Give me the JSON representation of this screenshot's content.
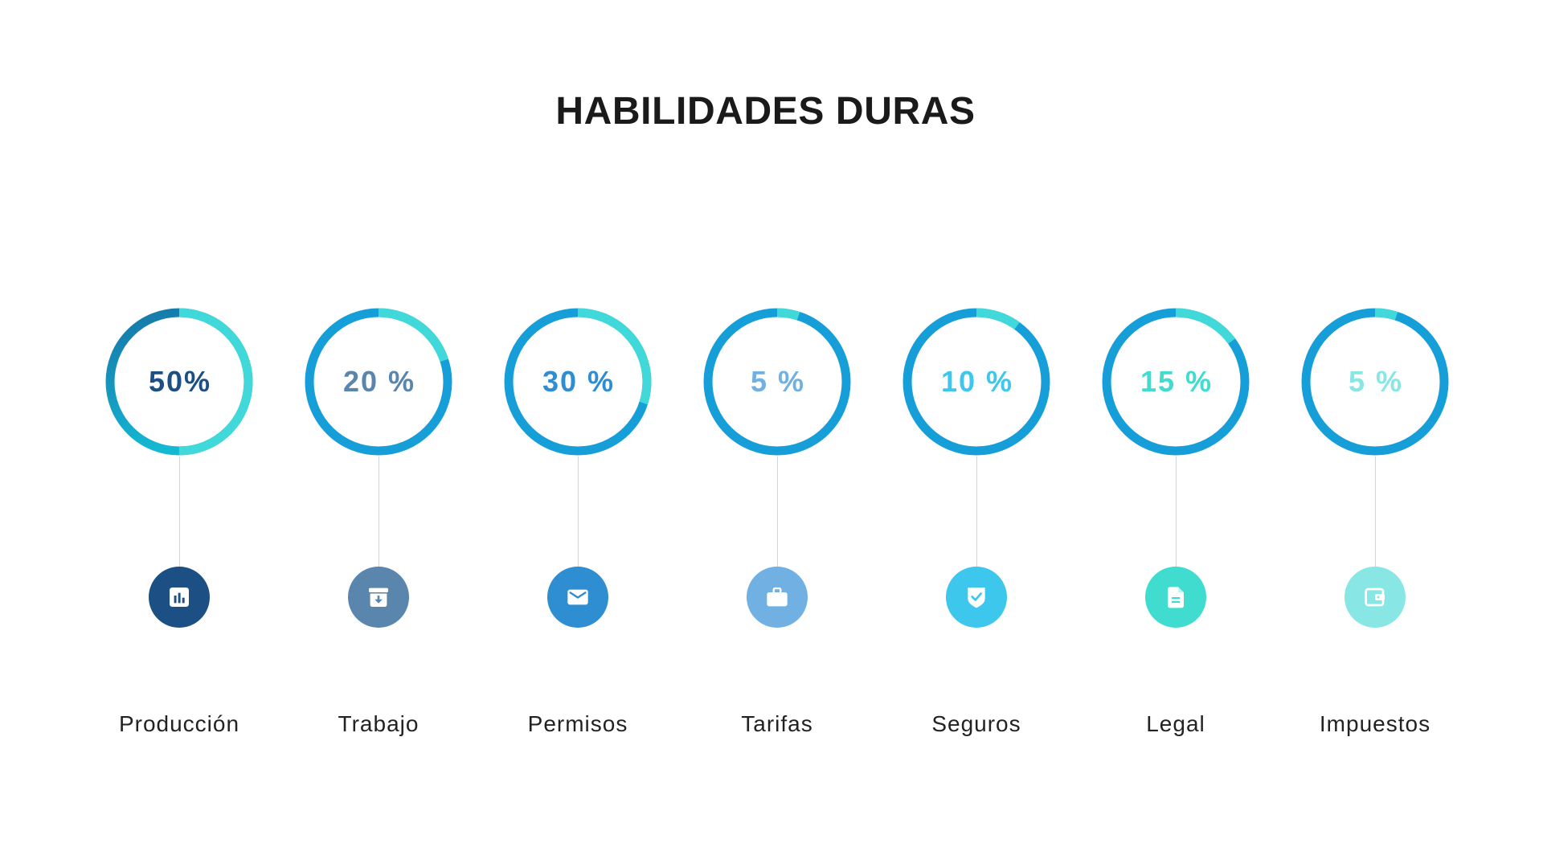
{
  "colors": {
    "background": "#ffffff",
    "title_text": "#1a1a1a",
    "label_text": "#222222",
    "ring_track": "#159ed8",
    "ring_arc": "#41d8d9",
    "connector": "#d4d4d4"
  },
  "chart_data": {
    "type": "pie",
    "title": "HABILIDADES DURAS",
    "categories": [
      "Producción",
      "Trabajo",
      "Permisos",
      "Tarifas",
      "Seguros",
      "Legal",
      "Impuestos"
    ],
    "values": [
      50,
      20,
      30,
      5,
      10,
      15,
      5
    ],
    "value_labels": [
      "50%",
      "20 %",
      "30 %",
      "5 %",
      "10 %",
      "15 %",
      "5 %"
    ],
    "range": [
      0,
      100
    ],
    "legend": "none"
  },
  "items": [
    {
      "color": "#1c4f84",
      "icon": "bar-chart-icon",
      "track_gradient": [
        "#1675a7",
        "#14b8d3"
      ]
    },
    {
      "color": "#5a85ad",
      "icon": "archive-download-icon"
    },
    {
      "color": "#2f8dd2",
      "icon": "mail-icon"
    },
    {
      "color": "#71b0e2",
      "icon": "briefcase-icon"
    },
    {
      "color": "#3ec7ec",
      "icon": "shield-check-icon"
    },
    {
      "color": "#3fdccf",
      "icon": "document-icon"
    },
    {
      "color": "#88e7e4",
      "icon": "wallet-icon"
    }
  ]
}
